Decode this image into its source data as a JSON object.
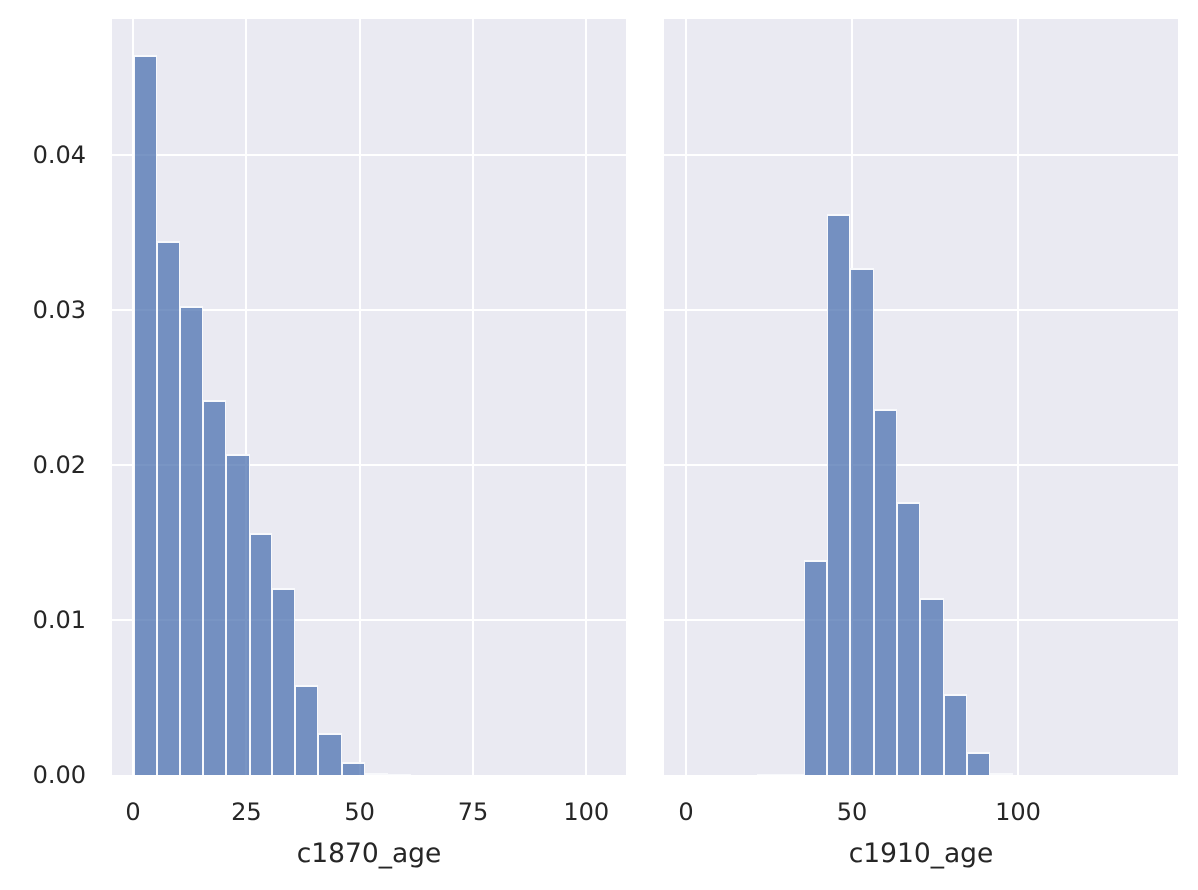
{
  "figure": {
    "background": "#ffffff",
    "plot_background": "#eaeaf2",
    "grid_color": "#ffffff",
    "bar_fill": "rgba(76,114,176,0.75)",
    "bar_edge": "rgba(255,255,255,0.95)",
    "text_color": "#262626"
  },
  "chart_data": [
    {
      "type": "bar",
      "subtype": "histogram-density",
      "title": "",
      "xlabel": "c1870_age",
      "ylabel": "",
      "grid": true,
      "legend": false,
      "xlim": [
        -4.64,
        108.76
      ],
      "ylim": [
        0,
        0.0488
      ],
      "xticks": [
        0,
        25,
        50,
        75,
        100
      ],
      "xtick_labels": [
        "0",
        "25",
        "50",
        "75",
        "100"
      ],
      "yticks": [
        0.0,
        0.01,
        0.02,
        0.03,
        0.04
      ],
      "ytick_labels": [
        "0.00",
        "0.01",
        "0.02",
        "0.03",
        "0.04"
      ],
      "show_ytick_labels": true,
      "bins": [
        {
          "x0": 0.2,
          "x1": 5.3,
          "density": 0.0465
        },
        {
          "x0": 5.3,
          "x1": 10.4,
          "density": 0.0345
        },
        {
          "x0": 10.4,
          "x1": 15.5,
          "density": 0.0303
        },
        {
          "x0": 15.5,
          "x1": 20.6,
          "density": 0.0242
        },
        {
          "x0": 20.6,
          "x1": 25.7,
          "density": 0.0207
        },
        {
          "x0": 25.7,
          "x1": 30.7,
          "density": 0.0156
        },
        {
          "x0": 30.7,
          "x1": 35.8,
          "density": 0.0121
        },
        {
          "x0": 35.8,
          "x1": 40.9,
          "density": 0.0058
        },
        {
          "x0": 40.9,
          "x1": 46.0,
          "density": 0.0027
        },
        {
          "x0": 46.0,
          "x1": 51.1,
          "density": 0.00084
        },
        {
          "x0": 51.1,
          "x1": 56.2,
          "density": 0.00012
        },
        {
          "x0": 56.2,
          "x1": 61.3,
          "density": 5e-05
        }
      ]
    },
    {
      "type": "bar",
      "subtype": "histogram-density",
      "title": "",
      "xlabel": "c1910_age",
      "ylabel": "",
      "grid": true,
      "legend": false,
      "xlim": [
        -6.63,
        148.17
      ],
      "ylim": [
        0,
        0.0488
      ],
      "xticks": [
        0,
        50,
        100
      ],
      "xtick_labels": [
        "0",
        "50",
        "100"
      ],
      "yticks": [
        0.0,
        0.01,
        0.02,
        0.03,
        0.04
      ],
      "ytick_labels": [
        "0.00",
        "0.01",
        "0.02",
        "0.03",
        "0.04"
      ],
      "show_ytick_labels": false,
      "bins": [
        {
          "x0": 21.4,
          "x1": 28.4,
          "density": 5e-05
        },
        {
          "x0": 28.4,
          "x1": 35.4,
          "density": 5e-05
        },
        {
          "x0": 35.4,
          "x1": 42.4,
          "density": 0.0139
        },
        {
          "x0": 42.4,
          "x1": 49.5,
          "density": 0.0362
        },
        {
          "x0": 49.5,
          "x1": 56.5,
          "density": 0.0327
        },
        {
          "x0": 56.5,
          "x1": 63.5,
          "density": 0.0236
        },
        {
          "x0": 63.5,
          "x1": 70.5,
          "density": 0.0176
        },
        {
          "x0": 70.5,
          "x1": 77.6,
          "density": 0.0114
        },
        {
          "x0": 77.6,
          "x1": 84.6,
          "density": 0.0052
        },
        {
          "x0": 84.6,
          "x1": 91.6,
          "density": 0.0015
        },
        {
          "x0": 91.6,
          "x1": 98.6,
          "density": 0.00013
        }
      ]
    }
  ]
}
